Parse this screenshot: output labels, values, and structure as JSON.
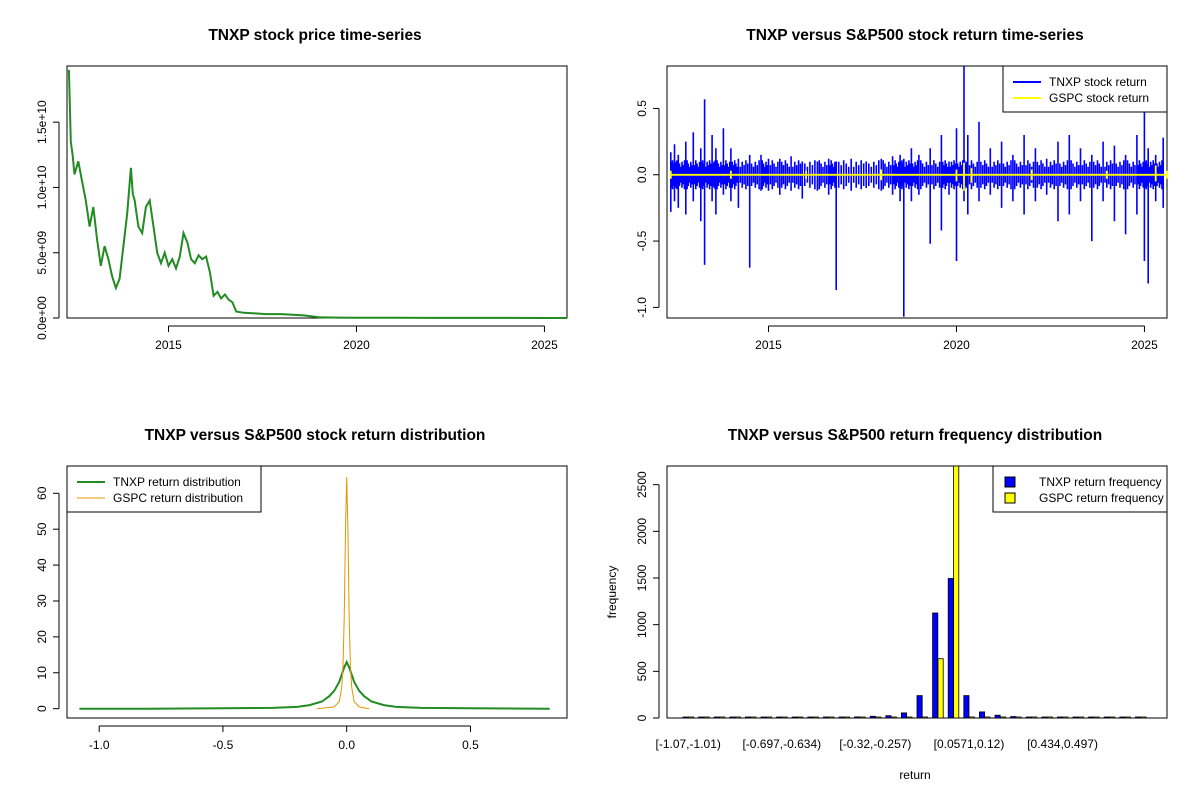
{
  "colors": {
    "price": "#228B22",
    "tnxp_return": "#0000FF",
    "gspc_return": "#FFFF00",
    "tnxp_density": "#228B22",
    "gspc_density": "#E69500",
    "tnxp_bar": "#0000FF",
    "gspc_bar": "#FFFF00"
  },
  "chart_data": [
    {
      "type": "line",
      "title": "TNXP stock price time-series",
      "xlabel": "",
      "ylabel": "",
      "xlim": [
        2012.3,
        2025.6
      ],
      "ylim": [
        0,
        19300000000
      ],
      "x_ticks": [
        {
          "v": 2015,
          "label": "2015"
        },
        {
          "v": 2020,
          "label": "2020"
        },
        {
          "v": 2025,
          "label": "2025"
        }
      ],
      "y_ticks": [
        {
          "v": 0,
          "label": "0.0e+00"
        },
        {
          "v": 5000000000,
          "label": "5.0e+09"
        },
        {
          "v": 10000000000,
          "label": "1.0e+10"
        },
        {
          "v": 15000000000,
          "label": "1.5e+10"
        }
      ],
      "series": [
        {
          "x": [
            2012.35,
            2012.4,
            2012.45,
            2012.5,
            2012.6,
            2012.7,
            2012.8,
            2012.9,
            2013.0,
            2013.1,
            2013.2,
            2013.3,
            2013.4,
            2013.5,
            2013.6,
            2013.7,
            2013.8,
            2013.9,
            2014.0,
            2014.05,
            2014.1,
            2014.15,
            2014.2,
            2014.3,
            2014.4,
            2014.5,
            2014.6,
            2014.7,
            2014.8,
            2014.9,
            2015.0,
            2015.1,
            2015.2,
            2015.3,
            2015.4,
            2015.5,
            2015.6,
            2015.7,
            2015.8,
            2015.9,
            2016.0,
            2016.1,
            2016.2,
            2016.3,
            2016.4,
            2016.5,
            2016.6,
            2016.7,
            2016.8,
            2017.0,
            2017.3,
            2017.6,
            2018.0,
            2018.3,
            2018.6,
            2019.0,
            2019.5,
            2020.0,
            2021.0,
            2022.0,
            2023.0,
            2024.0,
            2025.0,
            2025.6
          ],
          "y": [
            19000000000,
            13500000000,
            12500000000,
            11000000000,
            12000000000,
            10500000000,
            9000000000,
            7000000000,
            8500000000,
            6000000000,
            4000000000,
            5500000000,
            4500000000,
            3200000000,
            2300000000,
            3000000000,
            5500000000,
            8000000000,
            11500000000,
            9500000000,
            9000000000,
            8000000000,
            7000000000,
            6500000000,
            8500000000,
            9000000000,
            7000000000,
            5000000000,
            4200000000,
            5000000000,
            4000000000,
            4500000000,
            3800000000,
            4700000000,
            6500000000,
            5800000000,
            4500000000,
            4200000000,
            4800000000,
            4500000000,
            4700000000,
            3500000000,
            1700000000,
            2000000000,
            1500000000,
            1800000000,
            1400000000,
            1200000000,
            500000000,
            400000000,
            350000000,
            300000000,
            300000000,
            250000000,
            200000000,
            50000000,
            30000000,
            20000000,
            15000000,
            10000000,
            8000000,
            5000000,
            3000000,
            2000000
          ]
        }
      ]
    },
    {
      "type": "line",
      "title": "TNXP versus S&P500 stock return time-series",
      "xlabel": "",
      "ylabel": "",
      "xlim": [
        2012.3,
        2025.6
      ],
      "ylim": [
        -1.08,
        0.82
      ],
      "x_ticks": [
        {
          "v": 2015,
          "label": "2015"
        },
        {
          "v": 2020,
          "label": "2020"
        },
        {
          "v": 2025,
          "label": "2025"
        }
      ],
      "y_ticks": [
        {
          "v": -1.0,
          "label": "-1.0"
        },
        {
          "v": -0.5,
          "label": "-0.5"
        },
        {
          "v": 0.0,
          "label": "0.0"
        },
        {
          "v": 0.5,
          "label": "0.5"
        }
      ],
      "legend": {
        "position": "top-right",
        "items": [
          "TNXP stock return",
          "GSPC stock return"
        ]
      },
      "series": [
        {
          "name": "TNXP stock return",
          "x": [
            2012.4,
            2012.5,
            2012.6,
            2012.8,
            2013.0,
            2013.2,
            2013.3,
            2013.5,
            2013.6,
            2013.8,
            2014.0,
            2014.2,
            2014.5,
            2014.8,
            2015.0,
            2015.3,
            2015.6,
            2015.9,
            2016.3,
            2016.6,
            2016.8,
            2017.2,
            2017.6,
            2018.0,
            2018.3,
            2018.5,
            2018.6,
            2018.8,
            2019.0,
            2019.3,
            2019.6,
            2019.8,
            2020.0,
            2020.2,
            2020.3,
            2020.6,
            2020.9,
            2021.2,
            2021.5,
            2021.8,
            2022.1,
            2022.4,
            2022.7,
            2023.0,
            2023.3,
            2023.6,
            2023.9,
            2024.2,
            2024.5,
            2024.8,
            2025.0,
            2025.1,
            2025.3,
            2025.5
          ],
          "y_high": [
            0.17,
            0.23,
            0.15,
            0.25,
            0.32,
            0.2,
            0.57,
            0.3,
            0.2,
            0.35,
            0.2,
            0.12,
            0.15,
            0.15,
            0.12,
            0.12,
            0.14,
            0.1,
            0.1,
            0.12,
            0.1,
            0.12,
            0.1,
            0.12,
            0.14,
            0.15,
            0.12,
            0.2,
            0.15,
            0.2,
            0.3,
            0.1,
            0.35,
            0.82,
            0.3,
            0.4,
            0.2,
            0.25,
            0.15,
            0.3,
            0.2,
            0.12,
            0.25,
            0.3,
            0.2,
            0.15,
            0.25,
            0.22,
            0.15,
            0.3,
            0.5,
            0.2,
            0.15,
            0.28
          ],
          "y_low": [
            -0.28,
            -0.2,
            -0.25,
            -0.3,
            -0.2,
            -0.35,
            -0.68,
            -0.2,
            -0.3,
            -0.15,
            -0.2,
            -0.25,
            -0.7,
            -0.12,
            -0.12,
            -0.15,
            -0.12,
            -0.18,
            -0.12,
            -0.15,
            -0.87,
            -0.12,
            -0.1,
            -0.12,
            -0.15,
            -0.2,
            -1.07,
            -0.2,
            -0.15,
            -0.52,
            -0.42,
            -0.15,
            -0.65,
            -0.2,
            -0.3,
            -0.2,
            -0.15,
            -0.25,
            -0.2,
            -0.3,
            -0.2,
            -0.15,
            -0.35,
            -0.3,
            -0.2,
            -0.5,
            -0.2,
            -0.35,
            -0.45,
            -0.3,
            -0.65,
            -0.82,
            -0.2,
            -0.25
          ]
        },
        {
          "name": "GSPC stock return",
          "x": [
            2012.4,
            2014.0,
            2016.0,
            2018.0,
            2020.0,
            2020.2,
            2020.4,
            2022.0,
            2024.0,
            2025.3,
            2025.6
          ],
          "y_high": [
            0.03,
            0.03,
            0.03,
            0.04,
            0.04,
            0.09,
            0.05,
            0.04,
            0.03,
            0.07,
            0.03
          ],
          "y_low": [
            -0.03,
            -0.03,
            -0.03,
            -0.04,
            -0.05,
            -0.12,
            -0.06,
            -0.04,
            -0.03,
            -0.05,
            -0.03
          ]
        }
      ]
    },
    {
      "type": "line",
      "title": "TNXP versus S&P500 stock return distribution",
      "xlabel": "",
      "ylabel": "",
      "xlim": [
        -1.13,
        0.89
      ],
      "ylim": [
        -2.6,
        67.6
      ],
      "x_ticks": [
        {
          "v": -1.0,
          "label": "-1.0"
        },
        {
          "v": -0.5,
          "label": "-0.5"
        },
        {
          "v": 0.0,
          "label": "0.0"
        },
        {
          "v": 0.5,
          "label": "0.5"
        }
      ],
      "y_ticks": [
        {
          "v": 0,
          "label": "0"
        },
        {
          "v": 10,
          "label": "10"
        },
        {
          "v": 20,
          "label": "20"
        },
        {
          "v": 30,
          "label": "30"
        },
        {
          "v": 40,
          "label": "40"
        },
        {
          "v": 50,
          "label": "50"
        },
        {
          "v": 60,
          "label": "60"
        }
      ],
      "legend": {
        "position": "top-left",
        "items": [
          "TNXP return distribution",
          "GSPC return distribution"
        ]
      },
      "series": [
        {
          "name": "TNXP return distribution",
          "x": [
            -1.08,
            -0.8,
            -0.5,
            -0.3,
            -0.2,
            -0.15,
            -0.1,
            -0.07,
            -0.05,
            -0.03,
            -0.02,
            -0.01,
            0.0,
            0.01,
            0.02,
            0.03,
            0.05,
            0.07,
            0.1,
            0.15,
            0.2,
            0.3,
            0.5,
            0.82
          ],
          "y": [
            0.0,
            0.0,
            0.1,
            0.2,
            0.5,
            1.0,
            2.0,
            3.5,
            5.0,
            7.5,
            9.5,
            11.5,
            13.0,
            11.5,
            9.5,
            7.5,
            5.0,
            3.5,
            2.0,
            1.0,
            0.5,
            0.2,
            0.1,
            0.0
          ]
        },
        {
          "name": "GSPC return distribution",
          "x": [
            -0.12,
            -0.05,
            -0.03,
            -0.02,
            -0.015,
            -0.01,
            -0.005,
            0.0,
            0.005,
            0.01,
            0.015,
            0.02,
            0.03,
            0.05,
            0.09
          ],
          "y": [
            0.0,
            0.5,
            2.0,
            6.0,
            12.0,
            25.0,
            50.0,
            64.5,
            50.0,
            25.0,
            12.0,
            6.0,
            2.0,
            0.5,
            0.0
          ]
        }
      ]
    },
    {
      "type": "bar",
      "title": "TNXP versus S&P500 return frequency distribution",
      "xlabel": "return",
      "ylabel": "frequency",
      "ylim": [
        0,
        2700
      ],
      "categories": [
        "[-1.07,-1.01)",
        "[-1.01,-0.948)",
        "[-0.948,-0.885)",
        "[-0.885,-0.822)",
        "[-0.822,-0.76)",
        "[-0.76,-0.697)",
        "[-0.697,-0.634)",
        "[-0.634,-0.571)",
        "[-0.571,-0.508)",
        "[-0.508,-0.446)",
        "[-0.446,-0.383)",
        "[-0.383,-0.32)",
        "[-0.32,-0.257)",
        "[-0.257,-0.194)",
        "[-0.194,-0.132)",
        "[-0.132,-0.0689)",
        "[-0.0689,-0.0061)",
        "[-0.0061,0.0571)",
        "[0.0571,0.12)",
        "[0.12,0.183)",
        "[0.183,0.246)",
        "[0.246,0.308)",
        "[0.308,0.371)",
        "[0.371,0.434)",
        "[0.434,0.497)",
        "[0.497,0.56)",
        "[0.56,0.623)",
        "[0.623,0.685)",
        "[0.685,0.748)",
        "[0.748,0.811)"
      ],
      "shown_tick_labels": [
        "[-1.07,-1.01)",
        "[-0.697,-0.634)",
        "[-0.32,-0.257)",
        "[0.0571,0.12)",
        "[0.434,0.497)"
      ],
      "y_ticks": [
        {
          "v": 0,
          "label": "0"
        },
        {
          "v": 500,
          "label": "500"
        },
        {
          "v": 1000,
          "label": "1000"
        },
        {
          "v": 1500,
          "label": "1500"
        },
        {
          "v": 2000,
          "label": "2000"
        },
        {
          "v": 2500,
          "label": "2500"
        }
      ],
      "legend": {
        "position": "top-right",
        "items": [
          "TNXP return frequency",
          "GSPC return frequency"
        ]
      },
      "series": [
        {
          "name": "TNXP return frequency",
          "values": [
            1,
            0,
            0,
            1,
            2,
            3,
            5,
            3,
            4,
            6,
            8,
            12,
            18,
            25,
            55,
            240,
            1125,
            1495,
            240,
            65,
            30,
            15,
            6,
            4,
            3,
            2,
            1,
            1,
            0,
            1
          ]
        },
        {
          "name": "GSPC return frequency",
          "values": [
            0,
            0,
            0,
            0,
            0,
            0,
            0,
            0,
            0,
            0,
            0,
            0,
            0,
            0,
            0,
            0,
            635,
            2700,
            0,
            0,
            0,
            0,
            0,
            0,
            0,
            0,
            0,
            0,
            0,
            0
          ]
        }
      ]
    }
  ]
}
